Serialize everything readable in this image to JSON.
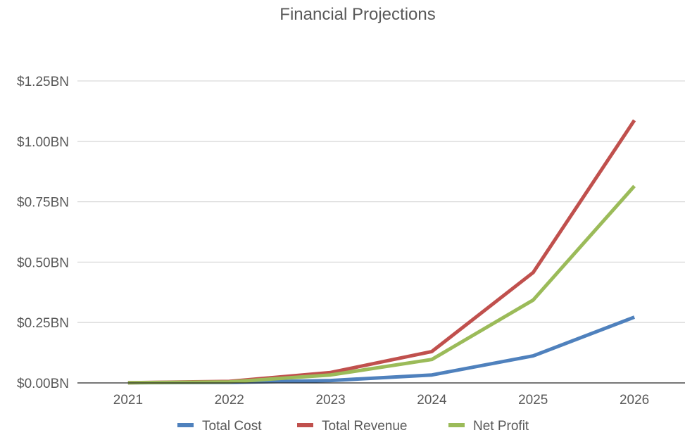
{
  "chart_data": {
    "type": "line",
    "title": "Financial Projections",
    "xlabel": "",
    "ylabel": "",
    "categories": [
      "2021",
      "2022",
      "2023",
      "2024",
      "2025",
      "2026"
    ],
    "ylim": [
      0,
      1.25
    ],
    "yticks": [
      0,
      0.25,
      0.5,
      0.75,
      1.0,
      1.25
    ],
    "ytick_labels": [
      "$0.00BN",
      "$0.25BN",
      "$0.50BN",
      "$0.75BN",
      "$1.00BN",
      "$1.25BN"
    ],
    "grid": true,
    "legend_position": "bottom",
    "series": [
      {
        "name": "Total Cost",
        "color": "#4f81bd",
        "values": [
          0.0005,
          0.002,
          0.01,
          0.033,
          0.112,
          0.272
        ]
      },
      {
        "name": "Total Revenue",
        "color": "#c0504d",
        "values": [
          0.001,
          0.006,
          0.043,
          0.13,
          0.457,
          1.087
        ]
      },
      {
        "name": "Net Profit",
        "color": "#9bbb59",
        "values": [
          0.0008,
          0.004,
          0.033,
          0.097,
          0.343,
          0.815
        ]
      }
    ]
  }
}
